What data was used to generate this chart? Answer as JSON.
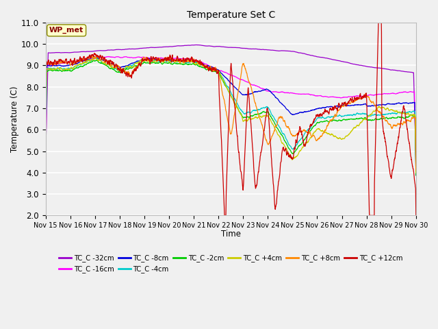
{
  "title": "Temperature Set C",
  "xlabel": "Time",
  "ylabel": "Temperature (C)",
  "ylim": [
    2.0,
    11.0
  ],
  "yticks": [
    2.0,
    3.0,
    4.0,
    5.0,
    6.0,
    7.0,
    8.0,
    9.0,
    10.0,
    11.0
  ],
  "xtick_labels": [
    "Nov 15",
    "Nov 16",
    "Nov 17",
    "Nov 18",
    "Nov 19",
    "Nov 20",
    "Nov 21",
    "Nov 22",
    "Nov 23",
    "Nov 24",
    "Nov 25",
    "Nov 26",
    "Nov 27",
    "Nov 28",
    "Nov 29",
    "Nov 30"
  ],
  "background_color": "#f0f0f0",
  "plot_bg_color": "#f0f0f0",
  "grid_color": "#ffffff",
  "series": [
    {
      "label": "TC_C -32cm",
      "color": "#9900cc"
    },
    {
      "label": "TC_C -16cm",
      "color": "#ff00ff"
    },
    {
      "label": "TC_C -8cm",
      "color": "#0000dd"
    },
    {
      "label": "TC_C -4cm",
      "color": "#00cccc"
    },
    {
      "label": "TC_C -2cm",
      "color": "#00cc00"
    },
    {
      "label": "TC_C +4cm",
      "color": "#cccc00"
    },
    {
      "label": "TC_C +8cm",
      "color": "#ff8800"
    },
    {
      "label": "TC_C +12cm",
      "color": "#cc0000"
    }
  ],
  "wp_met_box_color": "#ffffcc",
  "wp_met_text_color": "#880000",
  "wp_met_border_color": "#888800"
}
